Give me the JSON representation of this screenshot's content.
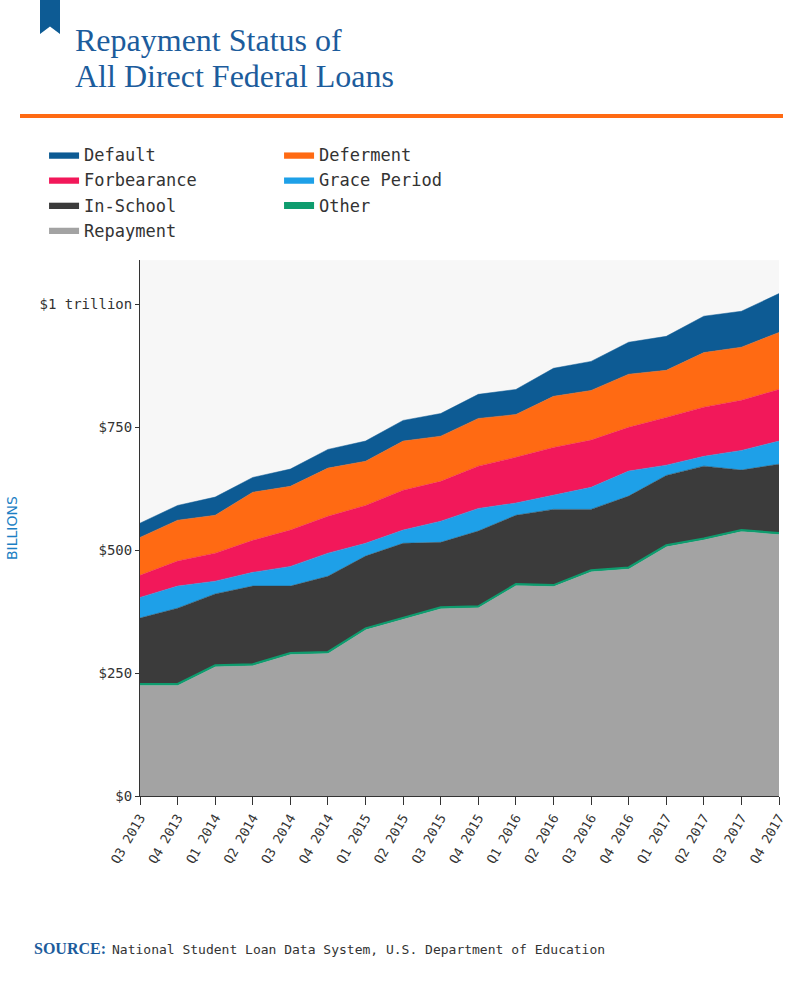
{
  "chart_data": {
    "type": "area",
    "title": "Repayment Status of\nAll Direct Federal Loans",
    "y_label": "BILLIONS",
    "source_label": "SOURCE:",
    "source": "National Student Loan Data System, U.S. Department of Education",
    "stacked": true,
    "grid": false,
    "legend": "top",
    "categories": [
      "Q3 2013",
      "Q4 2013",
      "Q1 2014",
      "Q2 2014",
      "Q3 2014",
      "Q4 2014",
      "Q1 2015",
      "Q2 2015",
      "Q3 2015",
      "Q4 2015",
      "Q1 2016",
      "Q2 2016",
      "Q3 2016",
      "Q4 2016",
      "Q1 2017",
      "Q2 2017",
      "Q3 2017",
      "Q4 2017"
    ],
    "ylim": [
      0,
      1090
    ],
    "yticks": [
      {
        "value": 0,
        "label": "$0"
      },
      {
        "value": 250,
        "label": "$250"
      },
      {
        "value": 500,
        "label": "$500"
      },
      {
        "value": 750,
        "label": "$750"
      },
      {
        "value": 1000,
        "label": "$1 trillion"
      }
    ],
    "series": [
      {
        "name": "Default",
        "color": "#0d5b94",
        "values": [
          29,
          30,
          37,
          30,
          35,
          38,
          41,
          42,
          46,
          49,
          51,
          57,
          59,
          65,
          69,
          74,
          73,
          79
        ]
      },
      {
        "name": "Deferment",
        "color": "#ff6a13",
        "values": [
          77,
          83,
          77,
          98,
          89,
          98,
          90,
          100,
          92,
          97,
          87,
          104,
          101,
          108,
          96,
          111,
          108,
          116
        ]
      },
      {
        "name": "Forbearance",
        "color": "#f2185a",
        "values": [
          45,
          51,
          57,
          65,
          74,
          75,
          77,
          81,
          81,
          86,
          93,
          97,
          96,
          89,
          97,
          100,
          102,
          105
        ]
      },
      {
        "name": "Grace Period",
        "color": "#1ea0e8",
        "values": [
          42,
          45,
          26,
          28,
          40,
          47,
          26,
          27,
          43,
          46,
          25,
          29,
          45,
          51,
          21,
          20,
          40,
          47
        ]
      },
      {
        "name": "In-School",
        "color": "#3b3b3b",
        "values": [
          134,
          154,
          145,
          159,
          136,
          154,
          147,
          152,
          132,
          153,
          140,
          154,
          124,
          145,
          142,
          147,
          122,
          140
        ]
      },
      {
        "name": "Other",
        "color": "#0e9c6e",
        "values": [
          3,
          3,
          3,
          3,
          3,
          3,
          3,
          3,
          3,
          3,
          3,
          3,
          3,
          3,
          3,
          3,
          3,
          3
        ]
      },
      {
        "name": "Repayment",
        "color": "#a3a3a3",
        "values": [
          225,
          225,
          263,
          265,
          288,
          290,
          338,
          359,
          381,
          383,
          428,
          426,
          456,
          462,
          507,
          521,
          538,
          532
        ]
      }
    ]
  }
}
